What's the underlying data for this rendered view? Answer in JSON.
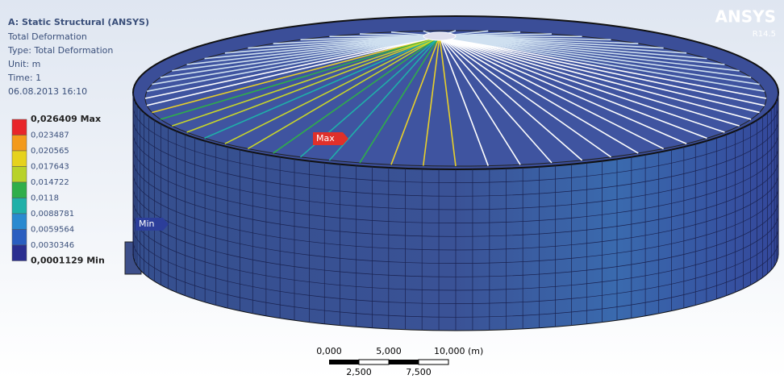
{
  "header": {
    "title": "A: Static Structural (ANSYS)",
    "lines": [
      "Total Deformation",
      "Type: Total Deformation",
      "Unit: m",
      "Time: 1",
      "06.08.2013 16:10"
    ]
  },
  "legend": {
    "labels": [
      "0,026409 Max",
      "0,023487",
      "0,020565",
      "0,017643",
      "0,014722",
      "0,0118",
      "0,0088781",
      "0,0059564",
      "0,0030346",
      "0,0001129 Min"
    ],
    "colors": [
      "#e8262a",
      "#f39a1c",
      "#e6d21d",
      "#b8d22a",
      "#2fae4a",
      "#1fb0a8",
      "#2a8ad0",
      "#2a5ec0",
      "#2a2e90"
    ]
  },
  "probes": {
    "max": "Max",
    "min": "Min"
  },
  "scale": {
    "top": [
      "0,000",
      "5,000",
      "10,000 (m)"
    ],
    "bottom": [
      "2,500",
      "7,500"
    ]
  },
  "brand": {
    "name": "ANSYS",
    "version": "R14.5"
  }
}
